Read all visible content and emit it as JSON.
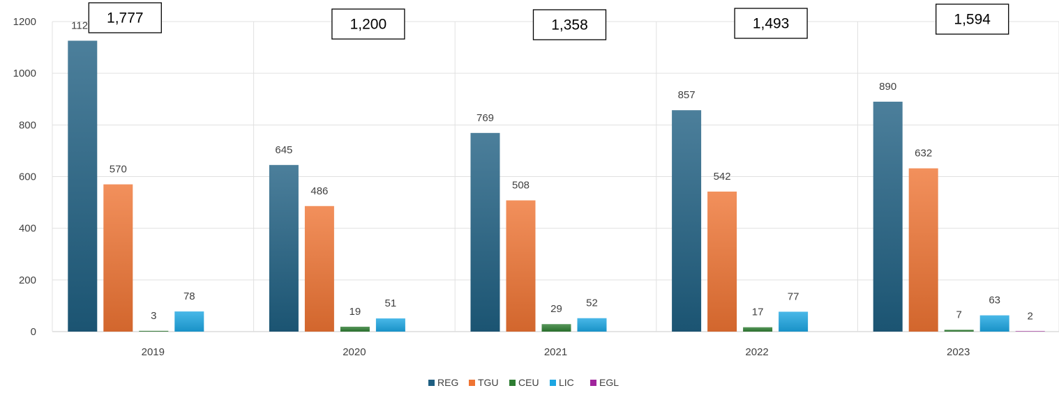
{
  "chart_data": {
    "type": "bar",
    "categories": [
      "2019",
      "2020",
      "2021",
      "2022",
      "2023"
    ],
    "series": [
      {
        "name": "REG",
        "color": "#1f5f82",
        "values": [
          1126,
          645,
          769,
          857,
          890
        ]
      },
      {
        "name": "TGU",
        "color": "#ef7433",
        "values": [
          570,
          486,
          508,
          542,
          632
        ]
      },
      {
        "name": "CEU",
        "color": "#2e7d32",
        "values": [
          3,
          19,
          29,
          17,
          7
        ]
      },
      {
        "name": "LIC",
        "color": "#1ca6e2",
        "values": [
          78,
          51,
          52,
          77,
          63
        ]
      },
      {
        "name": "EGL",
        "color": "#a0259c",
        "values": [
          null,
          null,
          null,
          null,
          2
        ]
      }
    ],
    "totals": [
      "1,777",
      "1,200",
      "1,358",
      "1,493",
      "1,594"
    ],
    "yticks": [
      0,
      200,
      400,
      600,
      800,
      1000,
      1200
    ],
    "ylim": [
      0,
      1200
    ],
    "grid": true,
    "legend_position": "bottom",
    "title": "",
    "xlabel": "",
    "ylabel": ""
  }
}
